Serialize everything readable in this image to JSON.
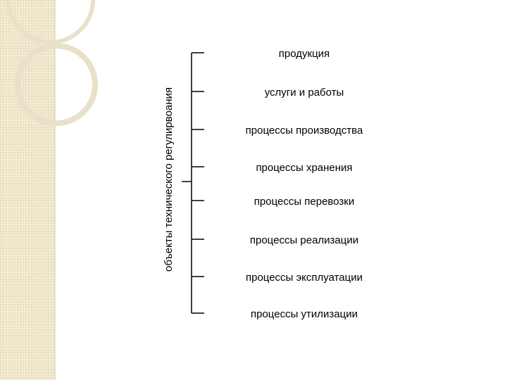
{
  "diagram": {
    "root": "объекты технического регулирвоания",
    "items": [
      "продукция",
      "услуги и работы",
      "процессы производства",
      "процессы хранения",
      "процессы перевозки",
      "процессы реализации",
      "процессы эксплуатации",
      "процессы утилизации"
    ]
  }
}
